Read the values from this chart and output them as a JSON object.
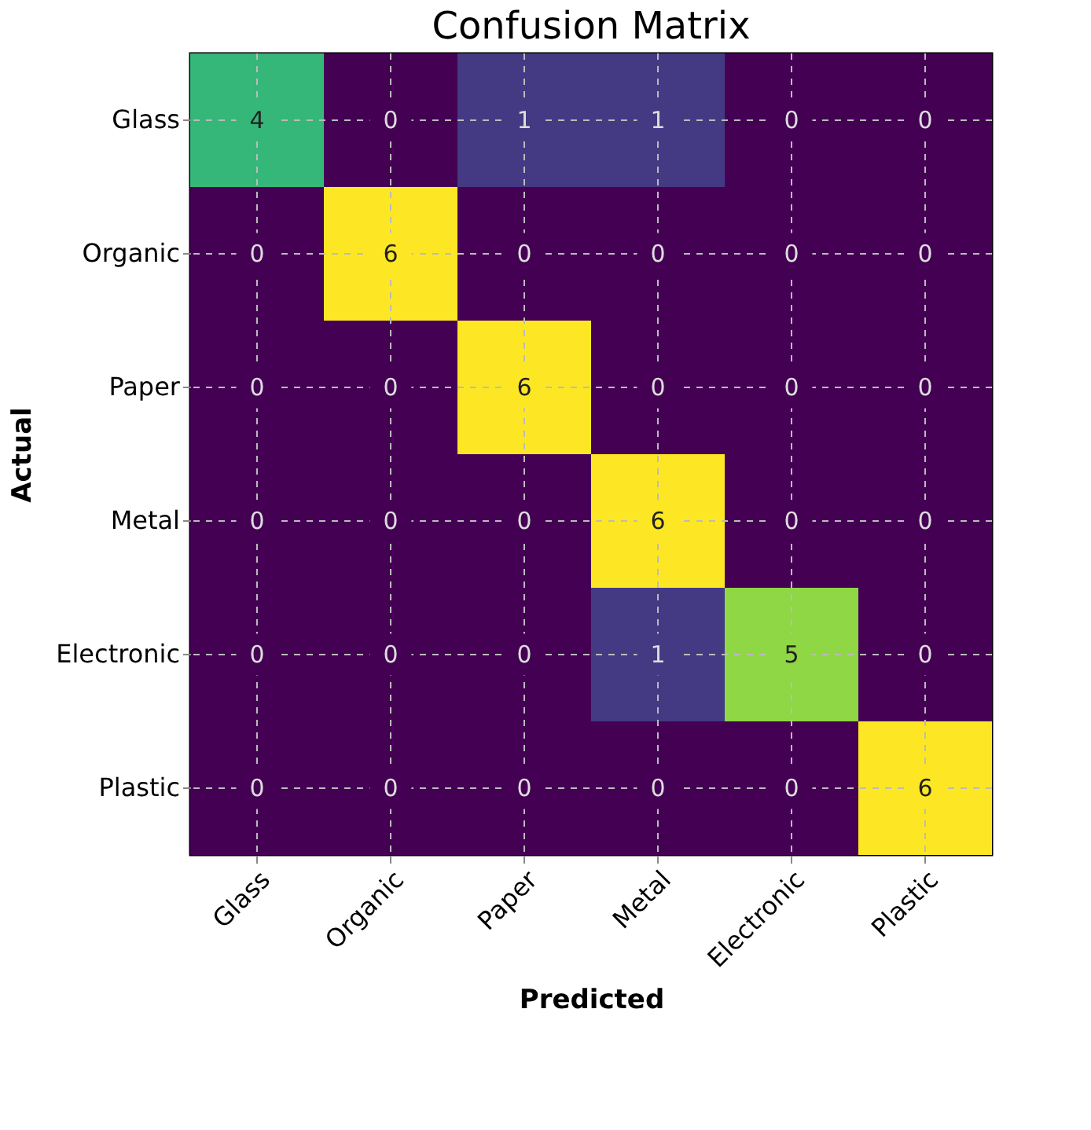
{
  "chart_data": {
    "type": "heatmap",
    "title": "Confusion Matrix",
    "xlabel": "Predicted",
    "ylabel": "Actual",
    "categories": [
      "Glass",
      "Organic",
      "Paper",
      "Metal",
      "Electronic",
      "Plastic"
    ],
    "y_categories": [
      "Glass",
      "Organic",
      "Paper",
      "Metal",
      "Electronic",
      "Plastic"
    ],
    "cells": [
      [
        4,
        0,
        1,
        1,
        0,
        0
      ],
      [
        0,
        6,
        0,
        0,
        0,
        0
      ],
      [
        0,
        0,
        6,
        0,
        0,
        0
      ],
      [
        0,
        0,
        0,
        6,
        0,
        0
      ],
      [
        0,
        0,
        0,
        1,
        5,
        0
      ],
      [
        0,
        0,
        0,
        0,
        0,
        6
      ]
    ],
    "data_labels": true,
    "grid": true
  }
}
